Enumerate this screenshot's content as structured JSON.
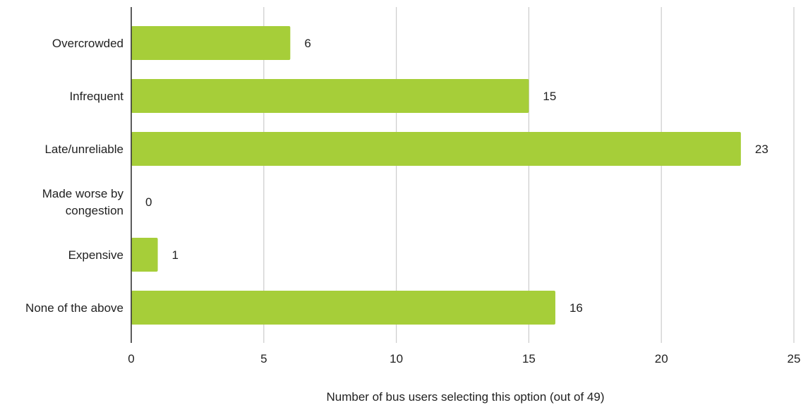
{
  "chart_data": {
    "type": "bar",
    "orientation": "horizontal",
    "categories": [
      [
        "Overcrowded"
      ],
      [
        "Infrequent"
      ],
      [
        "Late/unreliable"
      ],
      [
        "Made worse by",
        "congestion"
      ],
      [
        "Expensive"
      ],
      [
        "None of the above"
      ]
    ],
    "values": [
      6,
      15,
      23,
      0,
      1,
      16
    ],
    "data_labels": [
      "6",
      "15",
      "23",
      "0",
      "1",
      "16"
    ],
    "xlabel": "Number of bus users selecting this option (out of 49)",
    "ylabel": "",
    "xlim": [
      0,
      25
    ],
    "xticks": [
      0,
      5,
      10,
      15,
      20,
      25
    ],
    "xtick_labels": [
      "0",
      "5",
      "10",
      "15",
      "20",
      "25"
    ],
    "grid": "vertical",
    "bar_color": "#a6ce39",
    "grid_color": "#cccccc",
    "axis_color": "#333333"
  }
}
